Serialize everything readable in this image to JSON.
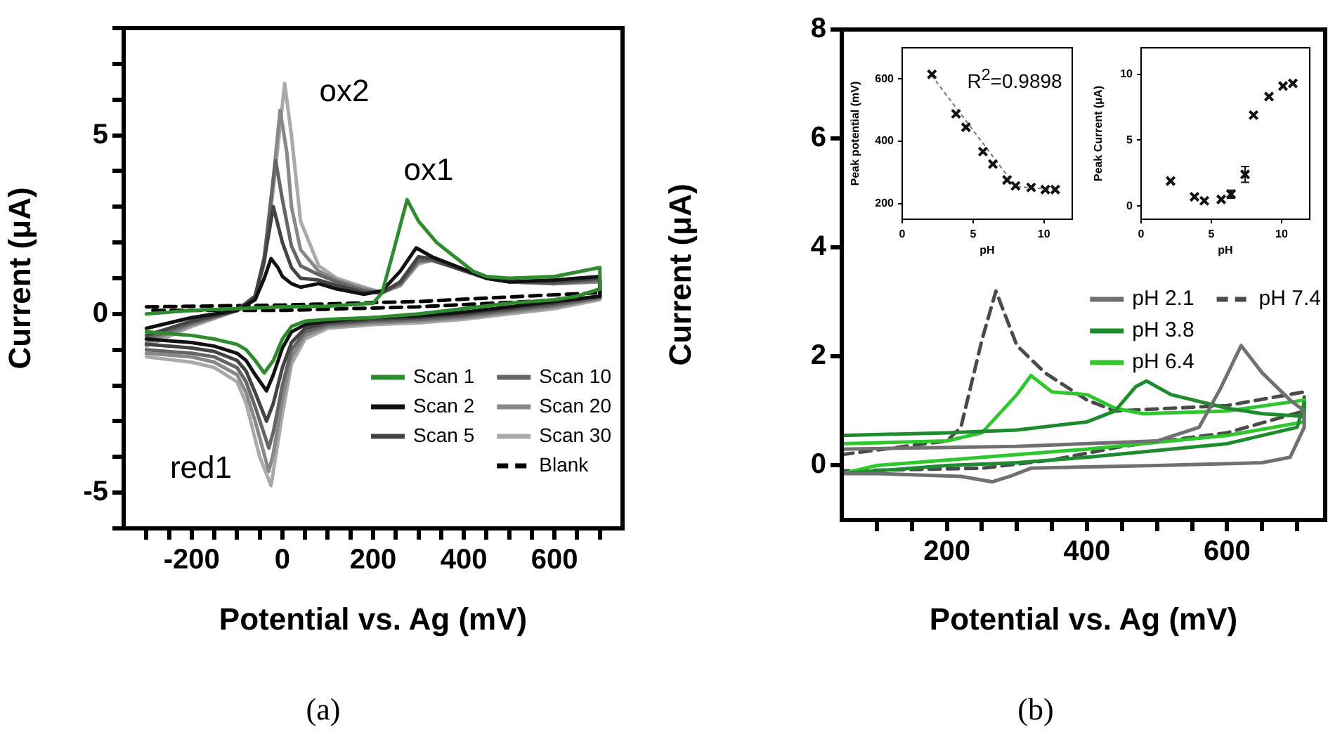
{
  "chart_data": [
    {
      "type": "line",
      "xlabel": "Potential vs. Ag (mV)",
      "ylabel": "Current (μA)",
      "xlim": [
        -350,
        750
      ],
      "xticks": [
        {
          "value": -300,
          "label": null
        },
        {
          "value": -250,
          "label": null
        },
        -200,
        {
          "value": -150,
          "label": null
        },
        {
          "value": -100,
          "label": null
        },
        {
          "value": -50,
          "label": null
        },
        0,
        {
          "value": 50,
          "label": null
        },
        {
          "value": 100,
          "label": null
        },
        {
          "value": 150,
          "label": null
        },
        200,
        {
          "value": 250,
          "label": null
        },
        {
          "value": 300,
          "label": null
        },
        {
          "value": 350,
          "label": null
        },
        400,
        {
          "value": 450,
          "label": null
        },
        {
          "value": 500,
          "label": null
        },
        {
          "value": 550,
          "label": null
        },
        600,
        {
          "value": 650,
          "label": null
        },
        {
          "value": 700,
          "label": null
        }
      ],
      "ylim": [
        -6,
        8
      ],
      "yticks": [
        {
          "value": -6,
          "label": null
        },
        -5,
        {
          "value": -4,
          "label": null
        },
        {
          "value": -3,
          "label": null
        },
        {
          "value": -2,
          "label": null
        },
        {
          "value": -1,
          "label": null
        },
        0,
        {
          "value": 1,
          "label": null
        },
        {
          "value": 2,
          "label": null
        },
        {
          "value": 3,
          "label": null
        },
        {
          "value": 4,
          "label": null
        },
        5,
        {
          "value": 6,
          "label": null
        },
        {
          "value": 7,
          "label": null
        },
        {
          "value": 8,
          "label": null
        }
      ],
      "grid": false,
      "legend": "bottom right",
      "annotations": [
        "ox2",
        "ox1",
        "red1",
        "(a)"
      ],
      "series": [
        {
          "name": "Scan 1",
          "color": "#2e8b2e",
          "x": [
            -300,
            -200,
            -100,
            0,
            100,
            200,
            220,
            250,
            275,
            300,
            340,
            380,
            420,
            450,
            500,
            600,
            700,
            700,
            650,
            600,
            500,
            400,
            300,
            200,
            100,
            50,
            20,
            0,
            -20,
            -40,
            -60,
            -80,
            -100,
            -150,
            -200,
            -300
          ],
          "values": [
            0.0,
            0.1,
            0.15,
            0.2,
            0.22,
            0.3,
            0.6,
            2.0,
            3.2,
            2.6,
            2.0,
            1.6,
            1.2,
            1.05,
            1.0,
            1.05,
            1.3,
            0.7,
            0.5,
            0.4,
            0.3,
            0.15,
            0.0,
            -0.1,
            -0.15,
            -0.2,
            -0.35,
            -0.7,
            -1.3,
            -1.65,
            -1.3,
            -1.0,
            -0.85,
            -0.7,
            -0.6,
            -0.5
          ]
        },
        {
          "name": "Scan 2",
          "color": "#111111",
          "x": [
            -300,
            -200,
            -100,
            -60,
            -40,
            -25,
            -10,
            0,
            20,
            40,
            80,
            120,
            180,
            220,
            260,
            295,
            330,
            380,
            450,
            500,
            600,
            700,
            700,
            600,
            500,
            400,
            300,
            200,
            100,
            50,
            20,
            0,
            -20,
            -35,
            -60,
            -80,
            -100,
            -150,
            -200,
            -300
          ],
          "values": [
            -0.4,
            -0.1,
            0.1,
            0.4,
            1.0,
            1.55,
            1.3,
            1.05,
            0.85,
            0.75,
            0.85,
            0.7,
            0.55,
            0.65,
            1.2,
            1.85,
            1.6,
            1.35,
            1.0,
            0.9,
            0.95,
            1.05,
            0.5,
            0.35,
            0.2,
            0.05,
            -0.05,
            -0.1,
            -0.2,
            -0.3,
            -0.5,
            -0.95,
            -1.7,
            -2.15,
            -1.7,
            -1.3,
            -1.1,
            -0.9,
            -0.8,
            -0.7
          ]
        },
        {
          "name": "Scan 5",
          "color": "#444444",
          "x": [
            -300,
            -200,
            -100,
            -60,
            -40,
            -20,
            0,
            20,
            40,
            80,
            120,
            180,
            220,
            260,
            300,
            330,
            380,
            450,
            500,
            600,
            700,
            700,
            600,
            500,
            400,
            300,
            200,
            100,
            50,
            20,
            0,
            -20,
            -35,
            -60,
            -80,
            -100,
            -150,
            -200,
            -300
          ],
          "values": [
            -0.6,
            -0.2,
            0.1,
            0.5,
            1.5,
            3.0,
            2.0,
            1.3,
            1.0,
            0.95,
            0.8,
            0.6,
            0.6,
            0.9,
            1.6,
            1.55,
            1.3,
            1.0,
            0.9,
            0.9,
            1.0,
            0.5,
            0.3,
            0.15,
            0.0,
            -0.1,
            -0.15,
            -0.25,
            -0.4,
            -0.8,
            -1.5,
            -2.5,
            -3.0,
            -2.2,
            -1.6,
            -1.3,
            -1.05,
            -0.95,
            -0.85
          ]
        },
        {
          "name": "Scan 10",
          "color": "#666666",
          "x": [
            -300,
            -200,
            -100,
            -60,
            -40,
            -15,
            0,
            20,
            40,
            80,
            120,
            180,
            220,
            260,
            300,
            330,
            380,
            450,
            500,
            600,
            700,
            700,
            600,
            500,
            400,
            300,
            200,
            100,
            50,
            20,
            0,
            -20,
            -30,
            -60,
            -80,
            -100,
            -150,
            -200,
            -300
          ],
          "values": [
            -0.7,
            -0.25,
            0.1,
            0.5,
            1.6,
            4.3,
            3.2,
            1.9,
            1.35,
            1.1,
            0.9,
            0.65,
            0.6,
            0.85,
            1.5,
            1.5,
            1.3,
            1.0,
            0.9,
            0.85,
            0.95,
            0.45,
            0.25,
            0.1,
            -0.05,
            -0.15,
            -0.2,
            -0.3,
            -0.5,
            -1.0,
            -2.0,
            -3.3,
            -3.75,
            -2.6,
            -1.9,
            -1.5,
            -1.2,
            -1.1,
            -1.0
          ]
        },
        {
          "name": "Scan 20",
          "color": "#888888",
          "x": [
            -300,
            -200,
            -100,
            -60,
            -40,
            -20,
            -5,
            10,
            20,
            40,
            80,
            120,
            180,
            220,
            260,
            300,
            330,
            380,
            450,
            500,
            600,
            700,
            700,
            600,
            500,
            400,
            300,
            200,
            100,
            50,
            20,
            0,
            -20,
            -30,
            -60,
            -80,
            -100,
            -150,
            -200,
            -300
          ],
          "values": [
            -0.8,
            -0.3,
            0.1,
            0.5,
            1.5,
            3.8,
            5.7,
            4.5,
            3.0,
            1.8,
            1.2,
            0.95,
            0.7,
            0.6,
            0.8,
            1.45,
            1.5,
            1.3,
            1.0,
            0.9,
            0.85,
            0.9,
            0.45,
            0.2,
            0.05,
            -0.1,
            -0.2,
            -0.25,
            -0.35,
            -0.6,
            -1.2,
            -2.4,
            -3.9,
            -4.4,
            -3.0,
            -2.2,
            -1.7,
            -1.35,
            -1.2,
            -1.1
          ]
        },
        {
          "name": "Scan 30",
          "color": "#aaaaaa",
          "x": [
            -300,
            -200,
            -100,
            -60,
            -40,
            -20,
            5,
            20,
            40,
            80,
            120,
            180,
            220,
            260,
            300,
            330,
            380,
            450,
            500,
            600,
            700,
            700,
            600,
            500,
            400,
            300,
            200,
            100,
            50,
            20,
            0,
            -25,
            -50,
            -80,
            -100,
            -150,
            -200,
            -300
          ],
          "values": [
            -0.9,
            -0.35,
            0.1,
            0.5,
            1.4,
            3.5,
            6.45,
            5.0,
            2.6,
            1.35,
            1.0,
            0.75,
            0.6,
            0.8,
            1.4,
            1.5,
            1.3,
            1.0,
            0.9,
            0.85,
            0.9,
            0.4,
            0.15,
            0.0,
            -0.15,
            -0.25,
            -0.3,
            -0.4,
            -0.7,
            -1.4,
            -2.8,
            -4.8,
            -4.0,
            -2.5,
            -1.9,
            -1.5,
            -1.35,
            -1.2
          ]
        },
        {
          "name": "Blank",
          "color": "#000000",
          "line_style": "dashed",
          "x": [
            -300,
            0,
            300,
            700,
            700,
            300,
            0,
            -300
          ],
          "values": [
            0.2,
            0.25,
            0.35,
            0.6,
            0.45,
            0.2,
            0.1,
            0.1
          ]
        }
      ]
    },
    {
      "type": "line",
      "xlabel": "Potential vs. Ag (mV)",
      "ylabel": "Current (μA)",
      "xlim": [
        50,
        740
      ],
      "xticks": [
        {
          "value": 100,
          "label": null
        },
        {
          "value": 150,
          "label": null
        },
        200,
        {
          "value": 250,
          "label": null
        },
        {
          "value": 300,
          "label": null
        },
        {
          "value": 350,
          "label": null
        },
        400,
        {
          "value": 450,
          "label": null
        },
        {
          "value": 500,
          "label": null
        },
        {
          "value": 550,
          "label": null
        },
        600,
        {
          "value": 650,
          "label": null
        },
        {
          "value": 700,
          "label": null
        }
      ],
      "ylim": [
        -1,
        8
      ],
      "yticks": [
        0,
        2,
        4,
        6,
        8
      ],
      "grid": false,
      "legend": "right",
      "annotations": [
        "(b)"
      ],
      "series": [
        {
          "name": "pH 2.1",
          "color": "#707070",
          "x": [
            50,
            300,
            500,
            560,
            590,
            620,
            650,
            690,
            710,
            710,
            690,
            650,
            500,
            320,
            290,
            265,
            220,
            100,
            50
          ],
          "values": [
            0.3,
            0.35,
            0.45,
            0.7,
            1.4,
            2.2,
            1.7,
            1.2,
            1.0,
            0.7,
            0.15,
            0.05,
            0.0,
            -0.05,
            -0.2,
            -0.3,
            -0.2,
            -0.15,
            -0.15
          ]
        },
        {
          "name": "pH 3.8",
          "color": "#1e8c2e",
          "x": [
            50,
            200,
            300,
            400,
            440,
            470,
            485,
            520,
            600,
            650,
            710,
            710,
            700,
            600,
            400,
            300,
            200,
            50
          ],
          "values": [
            0.55,
            0.6,
            0.65,
            0.8,
            1.0,
            1.45,
            1.55,
            1.3,
            1.05,
            0.95,
            0.9,
            1.15,
            0.7,
            0.4,
            0.15,
            0.05,
            0.0,
            -0.15
          ]
        },
        {
          "name": "pH 6.4",
          "color": "#2ec82e",
          "x": [
            50,
            200,
            250,
            300,
            320,
            350,
            400,
            440,
            480,
            600,
            710,
            710,
            600,
            400,
            200,
            100,
            50
          ],
          "values": [
            0.4,
            0.45,
            0.6,
            1.3,
            1.65,
            1.35,
            1.3,
            1.05,
            0.95,
            1.0,
            1.2,
            0.8,
            0.55,
            0.3,
            0.1,
            0.0,
            -0.15
          ]
        },
        {
          "name": "pH 7.4",
          "color": "#4a4a4a",
          "line_style": "dashed",
          "x": [
            50,
            200,
            220,
            250,
            270,
            300,
            340,
            400,
            440,
            600,
            710,
            710,
            600,
            450,
            350,
            250,
            50
          ],
          "values": [
            0.2,
            0.45,
            0.7,
            2.3,
            3.2,
            2.2,
            1.7,
            1.2,
            1.0,
            1.1,
            1.35,
            1.0,
            0.6,
            0.35,
            0.1,
            -0.05,
            -0.1
          ]
        }
      ]
    },
    {
      "type": "scatter",
      "xlabel": "pH",
      "ylabel": "Peak potential (mV)",
      "xlim": [
        0,
        12
      ],
      "xticks": [
        0,
        5,
        10
      ],
      "ylim": [
        150,
        700
      ],
      "yticks": [
        200,
        400,
        600
      ],
      "grid": false,
      "marker": "cross",
      "annotations": [
        "R$^{2}$=0.9898"
      ],
      "series": [
        {
          "color": "#111111",
          "x": [
            2.1,
            3.8,
            4.5,
            5.7,
            6.4,
            7.4,
            8.0,
            9.1,
            10.1,
            10.8
          ],
          "values": [
            615,
            488,
            445,
            367,
            327,
            276,
            257,
            252,
            245,
            245
          ]
        },
        {
          "type": "line",
          "color": "#777777",
          "line_style": "dotted",
          "marker": "none",
          "x": [
            2.1,
            8.0,
            10.8
          ],
          "values": [
            610,
            255,
            245
          ]
        }
      ]
    },
    {
      "type": "scatter",
      "xlabel": "pH",
      "ylabel": "Peak Current (μA)",
      "xlim": [
        0,
        12
      ],
      "xticks": [
        0,
        5,
        10
      ],
      "ylim": [
        -1,
        12
      ],
      "yticks": [
        0,
        5,
        10
      ],
      "grid": false,
      "marker": "cross",
      "series": [
        {
          "color": "#111111",
          "x": [
            2.1,
            3.8,
            4.5,
            5.7,
            6.4,
            7.4,
            8.0,
            9.1,
            10.1,
            10.8
          ],
          "values": [
            1.9,
            0.7,
            0.4,
            0.5,
            0.9,
            2.4,
            6.9,
            8.3,
            9.1,
            9.3
          ],
          "errors": [
            null,
            null,
            null,
            null,
            0.3,
            0.6,
            null,
            null,
            null,
            null
          ]
        }
      ]
    }
  ]
}
